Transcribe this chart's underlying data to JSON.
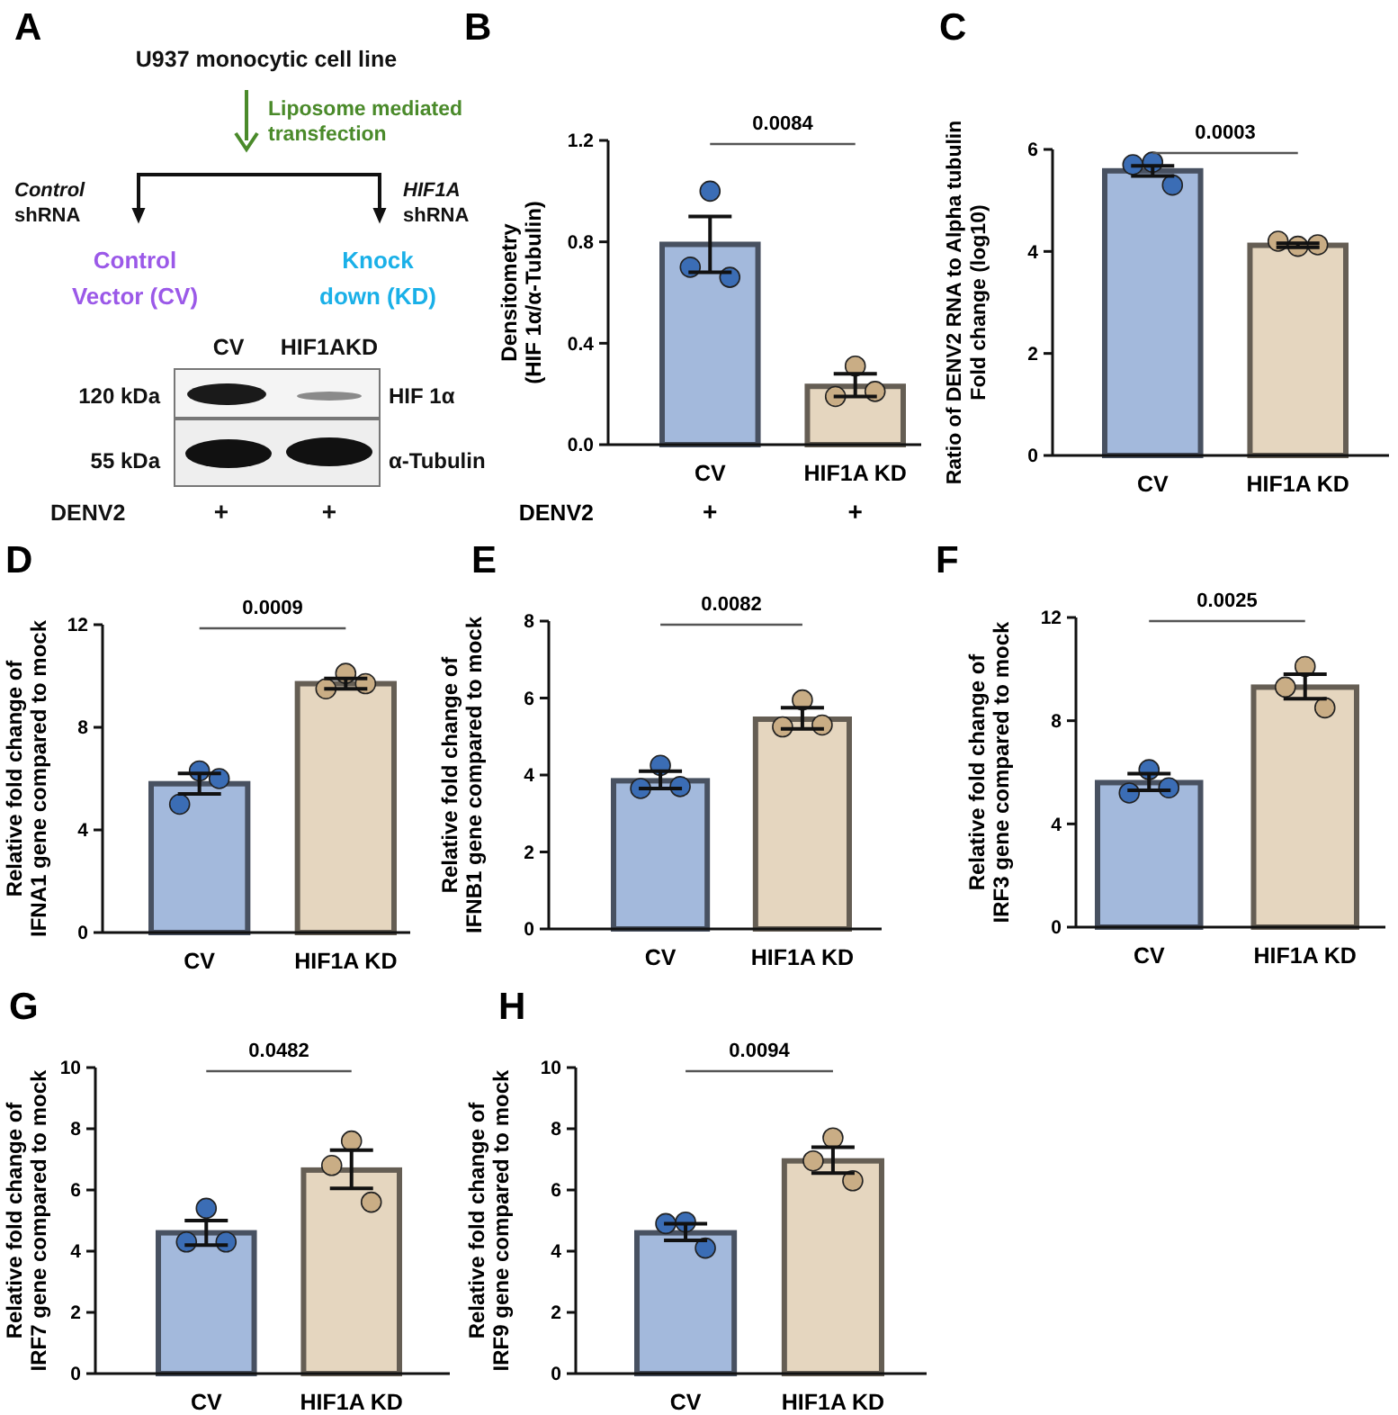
{
  "chart_data": [
    {
      "type": "other",
      "title": "A",
      "annotations": [
        "U937 monocytic cell line",
        "Liposome mediated\ntransfection",
        "Control\nshRNA",
        "HIF1A\nshRNA",
        "Control\nVector (CV)",
        "Knock\ndown (KD)",
        "CV",
        "HIF1AKD",
        "120 kDa",
        "55 kDa",
        "HIF 1α",
        "α-Tubulin",
        "DENV2",
        "+",
        "+"
      ]
    },
    {
      "type": "bar",
      "title": "B",
      "ylabel": "Densitometry\n(HIF 1α/α-Tubulin)",
      "categories": [
        "CV",
        "HIF1A KD"
      ],
      "ylim": [
        0,
        1.2
      ],
      "yticks": [
        {
          "value": 0,
          "label": "0.0"
        },
        0.4,
        0.8,
        1.2
      ],
      "annotations": [
        "0.0084",
        "DENV2",
        "+",
        "+"
      ],
      "series": [
        {
          "type": "bar",
          "colors": [
            "#a3b9dc",
            "#e5d6bf"
          ],
          "values": [
            0.79,
            0.23
          ],
          "errors": [
            [
              0.68,
              0.9
            ],
            [
              0.19,
              0.28
            ]
          ]
        },
        {
          "type": "scatter",
          "marker": "circle",
          "x": [
            "CV",
            "CV",
            "CV",
            "HIF1A KD",
            "HIF1A KD",
            "HIF1A KD"
          ],
          "values": [
            1.0,
            0.7,
            0.66,
            0.31,
            0.19,
            0.21
          ],
          "colors": [
            "#3b6db5",
            "#3b6db5",
            "#3b6db5",
            "#c9ad85",
            "#c9ad85",
            "#c9ad85"
          ]
        }
      ]
    },
    {
      "type": "bar",
      "title": "C",
      "ylabel": "Ratio of DENV2 RNA to Alpha tubulin\nFold change (log10)",
      "categories": [
        "CV",
        "HIF1A KD"
      ],
      "ylim": [
        0,
        6
      ],
      "yticks": [
        0,
        2,
        4,
        6
      ],
      "annotations": [
        "0.0003"
      ],
      "series": [
        {
          "type": "bar",
          "colors": [
            "#a3b9dc",
            "#e5d6bf"
          ],
          "values": [
            5.58,
            4.12
          ],
          "errors": [
            [
              5.48,
              5.68
            ],
            [
              4.08,
              4.16
            ]
          ]
        },
        {
          "type": "scatter",
          "marker": "circle",
          "x": [
            "CV",
            "CV",
            "CV",
            "HIF1A KD",
            "HIF1A KD",
            "HIF1A KD"
          ],
          "values": [
            5.75,
            5.7,
            5.3,
            4.1,
            4.2,
            4.13
          ],
          "colors": [
            "#3b6db5",
            "#3b6db5",
            "#3b6db5",
            "#c9ad85",
            "#c9ad85",
            "#c9ad85"
          ]
        }
      ]
    },
    {
      "type": "bar",
      "title": "D",
      "ylabel": "Relative fold change of\nIFNA1 gene compared to mock",
      "categories": [
        "CV",
        "HIF1A KD"
      ],
      "ylim": [
        0,
        12
      ],
      "yticks": [
        0,
        4,
        8,
        12
      ],
      "annotations": [
        "0.0009"
      ],
      "series": [
        {
          "type": "bar",
          "colors": [
            "#a3b9dc",
            "#e5d6bf"
          ],
          "values": [
            5.8,
            9.7
          ],
          "errors": [
            [
              5.4,
              6.2
            ],
            [
              9.5,
              9.9
            ]
          ]
        },
        {
          "type": "scatter",
          "marker": "circle",
          "x": [
            "CV",
            "CV",
            "CV",
            "HIF1A KD",
            "HIF1A KD",
            "HIF1A KD"
          ],
          "values": [
            6.3,
            5.0,
            6.0,
            10.1,
            9.5,
            9.7
          ],
          "colors": [
            "#3b6db5",
            "#3b6db5",
            "#3b6db5",
            "#c9ad85",
            "#c9ad85",
            "#c9ad85"
          ]
        }
      ]
    },
    {
      "type": "bar",
      "title": "E",
      "ylabel": "Relative fold change of\nIFNB1 gene compared to mock",
      "categories": [
        "CV",
        "HIF1A KD"
      ],
      "ylim": [
        0,
        8
      ],
      "yticks": [
        0,
        2,
        4,
        6,
        8
      ],
      "annotations": [
        "0.0082"
      ],
      "series": [
        {
          "type": "bar",
          "colors": [
            "#a3b9dc",
            "#e5d6bf"
          ],
          "values": [
            3.85,
            5.45
          ],
          "errors": [
            [
              3.65,
              4.1
            ],
            [
              5.2,
              5.75
            ]
          ]
        },
        {
          "type": "scatter",
          "marker": "circle",
          "x": [
            "CV",
            "CV",
            "CV",
            "HIF1A KD",
            "HIF1A KD",
            "HIF1A KD"
          ],
          "values": [
            4.25,
            3.65,
            3.7,
            5.95,
            5.25,
            5.3
          ],
          "colors": [
            "#3b6db5",
            "#3b6db5",
            "#3b6db5",
            "#c9ad85",
            "#c9ad85",
            "#c9ad85"
          ]
        }
      ]
    },
    {
      "type": "bar",
      "title": "F",
      "ylabel": "Relative fold change of\nIRF3 gene compared to mock",
      "categories": [
        "CV",
        "HIF1A KD"
      ],
      "ylim": [
        0,
        12
      ],
      "yticks": [
        0,
        4,
        8,
        12
      ],
      "annotations": [
        "0.0025"
      ],
      "series": [
        {
          "type": "bar",
          "colors": [
            "#a3b9dc",
            "#e5d6bf"
          ],
          "values": [
            5.6,
            9.3
          ],
          "errors": [
            [
              5.3,
              5.95
            ],
            [
              8.85,
              9.8
            ]
          ]
        },
        {
          "type": "scatter",
          "marker": "circle",
          "x": [
            "CV",
            "CV",
            "CV",
            "HIF1A KD",
            "HIF1A KD",
            "HIF1A KD"
          ],
          "values": [
            6.1,
            5.2,
            5.4,
            10.1,
            9.3,
            8.5
          ],
          "colors": [
            "#3b6db5",
            "#3b6db5",
            "#3b6db5",
            "#c9ad85",
            "#c9ad85",
            "#c9ad85"
          ]
        }
      ]
    },
    {
      "type": "bar",
      "title": "G",
      "ylabel": "Relative fold change of\nIRF7 gene compared to mock",
      "categories": [
        "CV",
        "HIF1A KD"
      ],
      "ylim": [
        0,
        10
      ],
      "yticks": [
        0,
        2,
        4,
        6,
        8,
        10
      ],
      "annotations": [
        "0.0482"
      ],
      "series": [
        {
          "type": "bar",
          "colors": [
            "#a3b9dc",
            "#e5d6bf"
          ],
          "values": [
            4.6,
            6.65
          ],
          "errors": [
            [
              4.2,
              5.0
            ],
            [
              6.05,
              7.3
            ]
          ]
        },
        {
          "type": "scatter",
          "marker": "circle",
          "x": [
            "CV",
            "CV",
            "CV",
            "HIF1A KD",
            "HIF1A KD",
            "HIF1A KD"
          ],
          "values": [
            5.4,
            4.3,
            4.3,
            7.6,
            6.8,
            5.6
          ],
          "colors": [
            "#3b6db5",
            "#3b6db5",
            "#3b6db5",
            "#c9ad85",
            "#c9ad85",
            "#c9ad85"
          ]
        }
      ]
    },
    {
      "type": "bar",
      "title": "H",
      "ylabel": "Relative fold change of\nIRF9 gene compared to mock",
      "categories": [
        "CV",
        "HIF1A KD"
      ],
      "ylim": [
        0,
        10
      ],
      "yticks": [
        0,
        2,
        4,
        6,
        8,
        10
      ],
      "annotations": [
        "0.0094"
      ],
      "series": [
        {
          "type": "bar",
          "colors": [
            "#a3b9dc",
            "#e5d6bf"
          ],
          "values": [
            4.6,
            6.95
          ],
          "errors": [
            [
              4.35,
              4.9
            ],
            [
              6.55,
              7.4
            ]
          ]
        },
        {
          "type": "scatter",
          "marker": "circle",
          "x": [
            "CV",
            "CV",
            "CV",
            "HIF1A KD",
            "HIF1A KD",
            "HIF1A KD"
          ],
          "values": [
            4.95,
            4.9,
            4.1,
            7.7,
            6.95,
            6.3
          ],
          "colors": [
            "#3b6db5",
            "#3b6db5",
            "#3b6db5",
            "#c9ad85",
            "#c9ad85",
            "#c9ad85"
          ]
        }
      ]
    }
  ]
}
